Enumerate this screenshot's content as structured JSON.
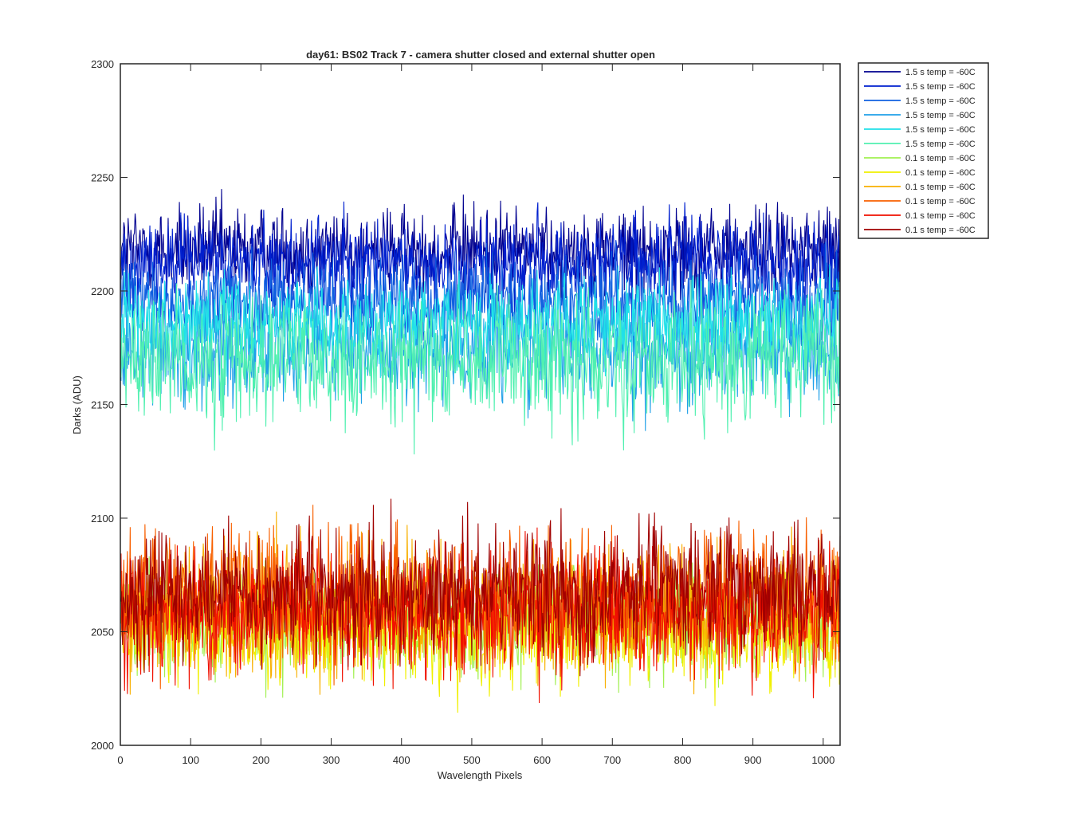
{
  "chart_data": {
    "type": "line",
    "title": "day61: BS02  Track 7 - camera shutter closed and external shutter open",
    "xlabel": "Wavelength Pixels",
    "ylabel": "Darks (ADU)",
    "xlim": [
      0,
      1024
    ],
    "ylim": [
      2000,
      2300
    ],
    "xticks": [
      0,
      100,
      200,
      300,
      400,
      500,
      600,
      700,
      800,
      900,
      1000
    ],
    "yticks": [
      2000,
      2050,
      2100,
      2150,
      2200,
      2250,
      2300
    ],
    "grid": false,
    "legend_position": "outside-top-right",
    "x_points": 1024,
    "series": [
      {
        "name": "1.5 s temp = -60C",
        "color": "#00008F",
        "mean": 2218,
        "noise": 10,
        "min": 2195,
        "max": 2257
      },
      {
        "name": "1.5 s temp = -60C",
        "color": "#0020CF",
        "mean": 2212,
        "noise": 10,
        "min": 2185,
        "max": 2248
      },
      {
        "name": "1.5 s temp = -60C",
        "color": "#1060E0",
        "mean": 2195,
        "noise": 10,
        "min": 2165,
        "max": 2225
      },
      {
        "name": "1.5 s temp = -60C",
        "color": "#20A0E8",
        "mean": 2175,
        "noise": 12,
        "min": 2128,
        "max": 2210
      },
      {
        "name": "1.5 s temp = -60C",
        "color": "#20E0E8",
        "mean": 2185,
        "noise": 10,
        "min": 2150,
        "max": 2212
      },
      {
        "name": "1.5 s temp = -60C",
        "color": "#50F0B0",
        "mean": 2170,
        "noise": 14,
        "min": 2108,
        "max": 2205
      },
      {
        "name": "0.1 s temp = -60C",
        "color": "#A0F050",
        "mean": 2055,
        "noise": 12,
        "min": 2018,
        "max": 2098
      },
      {
        "name": "0.1 s temp = -60C",
        "color": "#F0F000",
        "mean": 2050,
        "noise": 12,
        "min": 2011,
        "max": 2106
      },
      {
        "name": "0.1 s temp = -60C",
        "color": "#F8B000",
        "mean": 2060,
        "noise": 14,
        "min": 2017,
        "max": 2115
      },
      {
        "name": "0.1 s temp = -60C",
        "color": "#F86000",
        "mean": 2065,
        "noise": 15,
        "min": 2020,
        "max": 2125
      },
      {
        "name": "0.1 s temp = -60C",
        "color": "#F01000",
        "mean": 2058,
        "noise": 14,
        "min": 2014,
        "max": 2118
      },
      {
        "name": "0.1 s temp = -60C",
        "color": "#A00000",
        "mean": 2068,
        "noise": 14,
        "min": 2025,
        "max": 2118
      }
    ]
  }
}
